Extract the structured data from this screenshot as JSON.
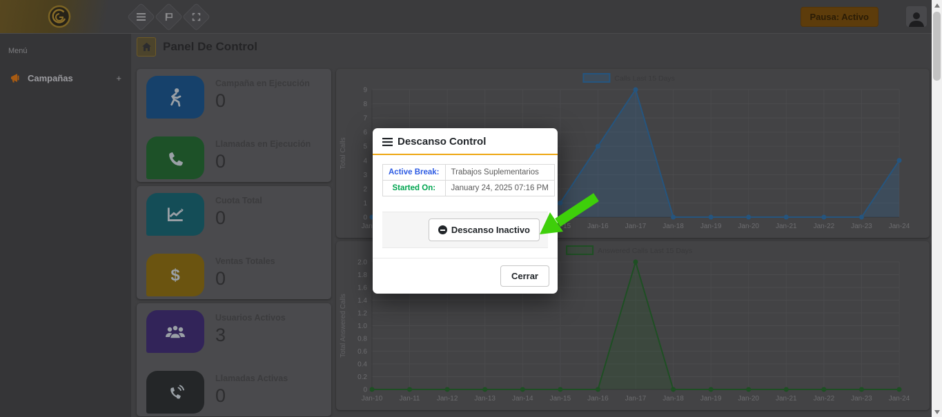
{
  "navbar": {
    "pause_button_label": "Pausa: Activo",
    "pause_button_color": "#5d3c0b"
  },
  "sidebar": {
    "section_label": "Menú",
    "items": [
      {
        "label": "Campañas",
        "expand_glyph": "+"
      }
    ]
  },
  "breadcrumb": {
    "title": "Panel De Control"
  },
  "stats": {
    "items": [
      {
        "label": "Campaña en Ejecución",
        "value": "0",
        "icon": "runner-icon",
        "tile_color": "#16416b"
      },
      {
        "label": "Llamadas en Ejecución",
        "value": "0",
        "icon": "phone-icon",
        "tile_color": "#1d5128"
      },
      {
        "label": "Cuota Total",
        "value": "0",
        "icon": "chart-line-icon",
        "tile_color": "#144d57"
      },
      {
        "label": "Ventas Totales",
        "value": "0",
        "icon": "dollar-icon",
        "tile_color": "#6b5410"
      },
      {
        "label": "Usuarios Activos",
        "value": "3",
        "icon": "users-icon",
        "tile_color": "#322459"
      },
      {
        "label": "Llamadas Activas",
        "value": "0",
        "icon": "phone-volume-icon",
        "tile_color": "#242628"
      }
    ]
  },
  "modal": {
    "title": "Descanso Control",
    "accent_color": "#eda612",
    "rows": [
      {
        "label": "Active Break:",
        "value": "Trabajos Suplementarios",
        "label_color": "#2d5be3"
      },
      {
        "label": "Started On:",
        "value": "January 24, 2025 07:16 PM",
        "label_color": "#00a550"
      }
    ],
    "action_button_label": "Descanso Inactivo",
    "close_button_label": "Cerrar",
    "annotation_arrow_color": "#3ecf0a"
  },
  "chart_data": [
    {
      "type": "line",
      "legend": "Calls Last 15 Days",
      "ylabel": "Total Calls",
      "categories": [
        "Jan-10",
        "Jan-11",
        "Jan-12",
        "Jan-13",
        "Jan-14",
        "Jan-15",
        "Jan-16",
        "Jan-17",
        "Jan-18",
        "Jan-19",
        "Jan-20",
        "Jan-21",
        "Jan-22",
        "Jan-23",
        "Jan-24"
      ],
      "values": [
        0,
        0,
        0,
        0,
        0,
        1,
        5,
        9,
        0,
        0,
        0,
        0,
        0,
        0,
        4
      ],
      "ylim": [
        0,
        9
      ],
      "ytick_step": 1,
      "grid": true,
      "legend_position": "top",
      "color": "#25557f",
      "fill": "rgba(47,100,150,0.28)"
    },
    {
      "type": "line",
      "legend": "Answered Calls Last 15 Days",
      "ylabel": "Total Answered Calls",
      "categories": [
        "Jan-10",
        "Jan-11",
        "Jan-12",
        "Jan-13",
        "Jan-14",
        "Jan-15",
        "Jan-16",
        "Jan-17",
        "Jan-18",
        "Jan-19",
        "Jan-20",
        "Jan-21",
        "Jan-22",
        "Jan-23",
        "Jan-24"
      ],
      "values": [
        0,
        0,
        0,
        0,
        0,
        0,
        0,
        2,
        0,
        0,
        0,
        0,
        0,
        0,
        0
      ],
      "ylim": [
        0,
        2
      ],
      "ytick_step": 0.2,
      "grid": true,
      "legend_position": "top",
      "color": "#1e4f23",
      "fill": "rgba(35,90,40,0.22)"
    }
  ]
}
